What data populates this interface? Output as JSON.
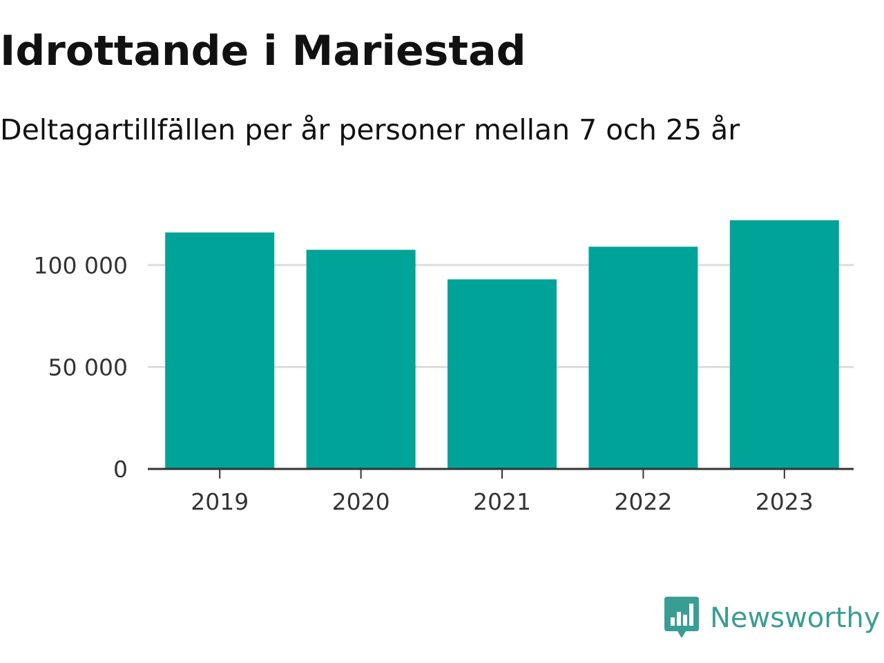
{
  "header": {
    "title": "Idrottande i Mariestad",
    "subtitle": "Deltagartillfällen per år personer mellan 7 och 25 år"
  },
  "brand": {
    "name": "Newsworthy",
    "icon": "newsworthy-logo-icon",
    "color": "#3a9d94"
  },
  "chart_data": {
    "type": "bar",
    "categories": [
      "2019",
      "2020",
      "2021",
      "2022",
      "2023"
    ],
    "values": [
      116000,
      107500,
      93000,
      109000,
      122000
    ],
    "yticks": [
      0,
      50000,
      100000
    ],
    "ytick_labels": [
      "0",
      "50 000",
      "100 000"
    ],
    "ylim": [
      0,
      125000
    ],
    "grid": true,
    "legend": "none",
    "bar_color": "#00a398",
    "gridline_color": "#dddddd",
    "axis_color": "#333333"
  }
}
